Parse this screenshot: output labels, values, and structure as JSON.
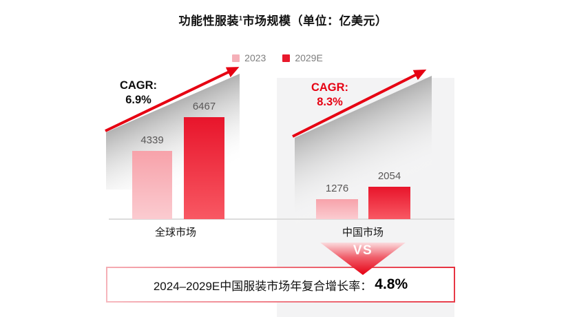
{
  "title": {
    "part1": "功能性服装",
    "sup": "1",
    "part2": "市场规模（单位：亿美元）"
  },
  "legend": [
    {
      "label": "2023",
      "color": "#f5b0b8"
    },
    {
      "label": "2029E",
      "color": "#e8192c"
    }
  ],
  "chart_data": [
    {
      "type": "bar",
      "title": "全球市场",
      "categories": [
        "2023",
        "2029E"
      ],
      "values": [
        4339,
        6467
      ],
      "cagr": {
        "label": "CAGR:",
        "value": "6.9%"
      },
      "unit": "亿美元",
      "bar_colors": [
        "#f7a2aa",
        "#e8152b"
      ],
      "ylim": [
        0,
        7000
      ],
      "grid": false,
      "legend_position": "top-center"
    },
    {
      "type": "bar",
      "title": "中国市场",
      "categories": [
        "2023",
        "2029E"
      ],
      "values": [
        1276,
        2054
      ],
      "cagr": {
        "label": "CAGR:",
        "value": "8.3%"
      },
      "unit": "亿美元",
      "bar_colors": [
        "#f7a2aa",
        "#e8152b"
      ],
      "ylim": [
        0,
        7000
      ],
      "grid": false,
      "legend_position": "top-center"
    }
  ],
  "vs": {
    "label": "VS"
  },
  "footer": {
    "text": "2024–2029E中国服装市场年复合增长率：",
    "value": "4.8%"
  },
  "colors": {
    "brand_red": "#e60012",
    "bar_pink_top": "#f7a2aa",
    "bar_pink_bottom": "#fbcbd0",
    "bar_red_top": "#e8152b",
    "bar_red_bottom": "#f85863",
    "panel_gray": "#f3f3f4",
    "axis_gray": "#dcdcdc",
    "value_text_gray": "#595757",
    "legend_text_gray": "#7d7d7d"
  }
}
